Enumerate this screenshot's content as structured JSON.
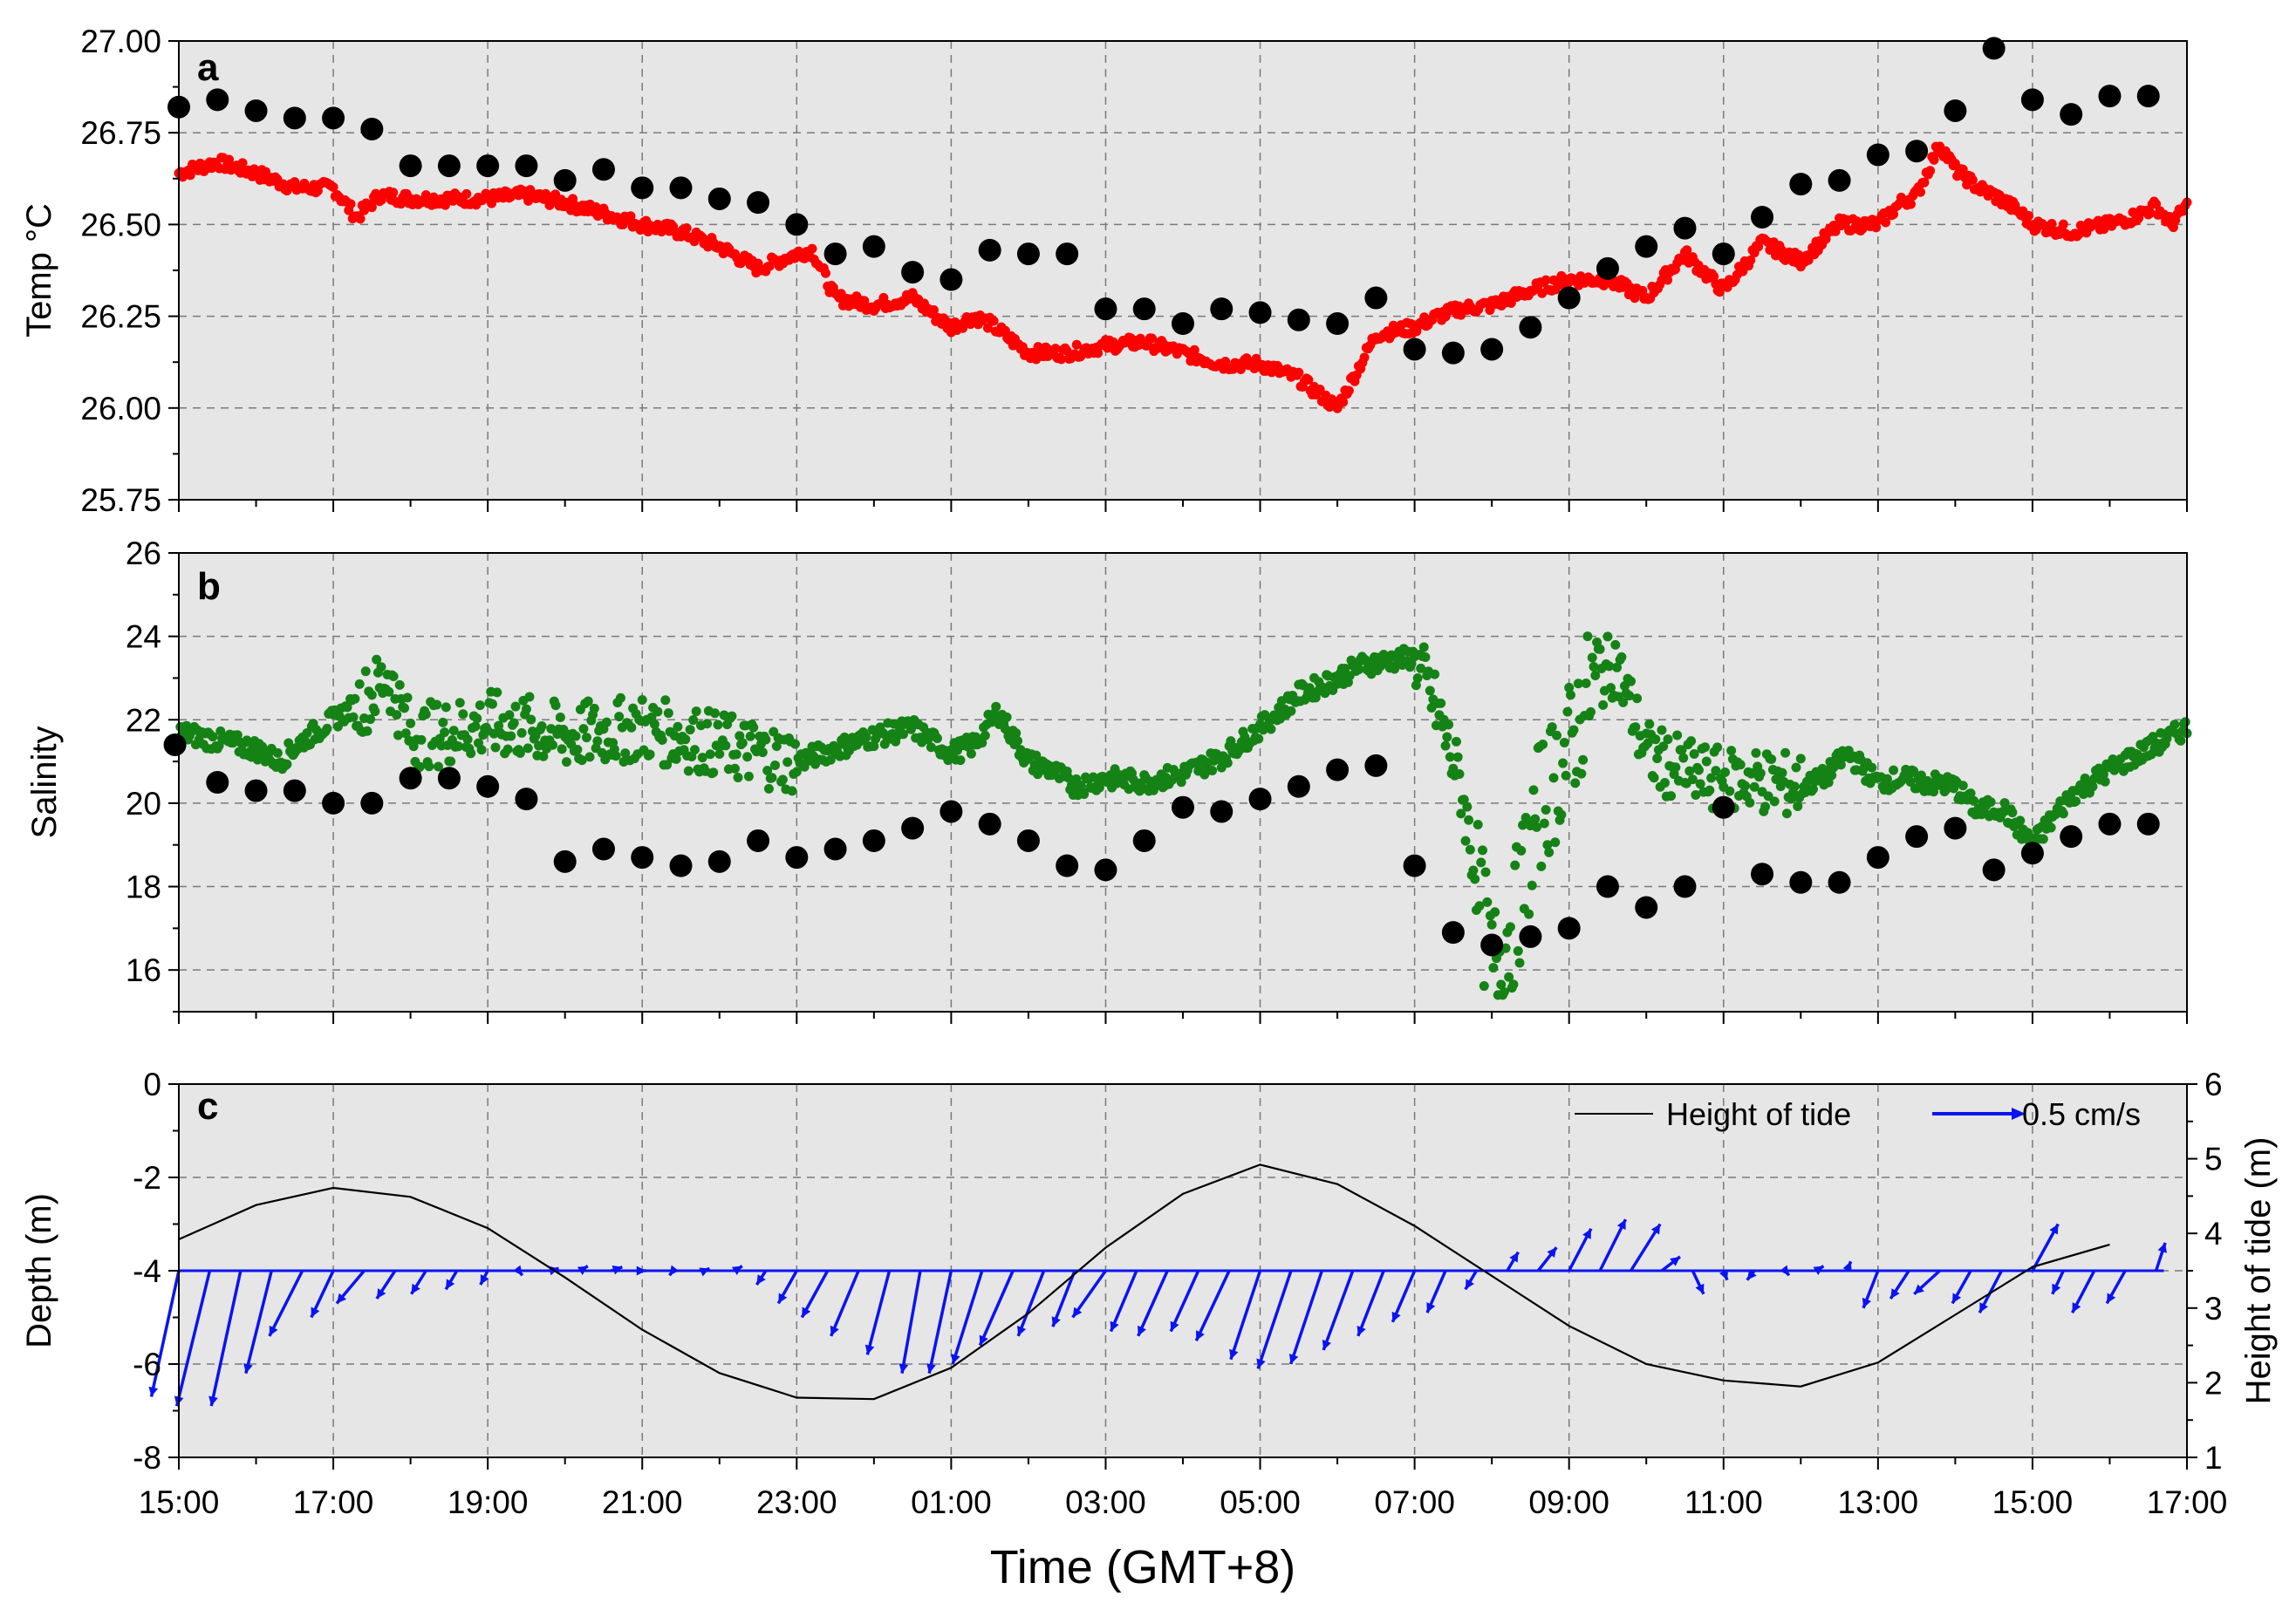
{
  "xaxis": {
    "title": "Time (GMT+8)",
    "tick_labels": [
      "15:00",
      "17:00",
      "19:00",
      "21:00",
      "23:00",
      "01:00",
      "03:00",
      "05:00",
      "07:00",
      "09:00",
      "11:00",
      "13:00",
      "15:00",
      "17:00"
    ],
    "range_hours": [
      0,
      26
    ]
  },
  "colors": {
    "panel_bg": "#e6e6e6",
    "temp_series": "#ff0000",
    "salinity_series": "#158215",
    "observed_points": "#000000",
    "current_vectors": "#0a14f0",
    "tide_line": "#000000"
  },
  "chart_data": [
    {
      "panel": "a",
      "type": "scatter",
      "ylabel": "Temp °C",
      "ylim": [
        25.75,
        27.0
      ],
      "y_tick_labels": [
        "25.75",
        "26.00",
        "26.25",
        "26.50",
        "26.75",
        "27.00"
      ],
      "grid": true,
      "series": [
        {
          "style": "dense-red-dots",
          "x_hours": [
            0,
            0.5,
            1,
            1.5,
            2,
            2.3,
            2.6,
            3,
            3.5,
            4,
            4.5,
            5,
            5.5,
            6,
            6.5,
            7,
            7.5,
            8,
            8.2,
            8.5,
            9,
            9.5,
            9.8,
            10,
            10.3,
            10.5,
            11,
            11.5,
            12,
            12.5,
            13,
            13.5,
            14,
            14.5,
            15,
            15.5,
            16,
            16.3,
            16.6,
            17,
            17.5,
            18,
            18.5,
            19,
            19.5,
            20,
            20.5,
            21,
            21.5,
            22,
            22.3,
            22.5,
            22.8,
            23,
            23.3,
            23.5,
            23.8,
            24,
            24.5,
            25,
            25.3,
            25.6,
            25.8,
            26
          ],
          "y": [
            26.64,
            26.67,
            26.64,
            26.6,
            26.6,
            26.52,
            26.58,
            26.57,
            26.57,
            26.57,
            26.58,
            26.56,
            26.53,
            26.5,
            26.48,
            26.44,
            26.38,
            26.42,
            26.43,
            26.3,
            26.28,
            26.3,
            26.25,
            26.22,
            26.25,
            26.23,
            26.15,
            26.15,
            26.17,
            26.18,
            26.15,
            26.12,
            26.12,
            26.08,
            26.0,
            26.2,
            26.22,
            26.25,
            26.27,
            26.28,
            26.32,
            26.35,
            26.35,
            26.3,
            26.42,
            26.32,
            26.45,
            26.4,
            26.5,
            26.5,
            26.56,
            26.58,
            26.72,
            26.65,
            26.6,
            26.58,
            26.54,
            26.5,
            26.48,
            26.5,
            26.52,
            26.55,
            26.5,
            26.55
          ]
        },
        {
          "style": "large-black-dots",
          "x_hours": [
            0,
            0.5,
            1,
            1.5,
            2,
            2.5,
            3,
            3.5,
            4,
            4.5,
            5,
            5.5,
            6,
            6.5,
            7,
            7.5,
            8,
            8.5,
            9,
            9.5,
            10,
            10.5,
            11,
            11.5,
            12,
            12.5,
            13,
            13.5,
            14,
            14.5,
            15,
            15.5,
            16,
            16.5,
            17,
            17.5,
            18,
            18.5,
            19,
            19.5,
            20,
            20.5,
            21,
            21.5,
            22,
            22.5,
            23,
            23.5,
            24,
            24.5,
            25,
            25.5
          ],
          "y": [
            26.82,
            26.84,
            26.81,
            26.79,
            26.79,
            26.76,
            26.66,
            26.66,
            26.66,
            26.66,
            26.62,
            26.65,
            26.6,
            26.6,
            26.57,
            26.56,
            26.5,
            26.42,
            26.44,
            26.37,
            26.35,
            26.43,
            26.42,
            26.42,
            26.27,
            26.27,
            26.23,
            26.27,
            26.26,
            26.24,
            26.23,
            26.3,
            26.16,
            26.15,
            26.16,
            26.22,
            26.3,
            26.38,
            26.44,
            26.49,
            26.42,
            26.52,
            26.61,
            26.62,
            26.69,
            26.7,
            26.81,
            26.98,
            26.84,
            26.8,
            26.85,
            26.85
          ]
        }
      ]
    },
    {
      "panel": "b",
      "type": "scatter",
      "ylabel": "Salinity",
      "ylim": [
        15,
        26
      ],
      "y_tick_labels": [
        "16",
        "18",
        "20",
        "22",
        "24",
        "26"
      ],
      "grid": true,
      "series": [
        {
          "style": "dense-green-dots",
          "x_hours": [
            0,
            0.5,
            1,
            1.3,
            1.6,
            2,
            2.5,
            2.7,
            3,
            3.5,
            4,
            4.5,
            5,
            5.5,
            6,
            6.5,
            7,
            7.5,
            8,
            8.5,
            9,
            9.5,
            10,
            10.3,
            10.6,
            11,
            11.3,
            11.6,
            12,
            12.5,
            13,
            13.5,
            14,
            14.5,
            15,
            15.3,
            15.6,
            16,
            16.3,
            16.6,
            17,
            17.3,
            17.6,
            18,
            18.3,
            18.6,
            19,
            19.3,
            19.6,
            20,
            20.3,
            20.6,
            21,
            21.3,
            21.6,
            22,
            22.3,
            22.6,
            23,
            23.3,
            23.6,
            24,
            24.5,
            25,
            25.5,
            26
          ],
          "y": [
            21.7,
            21.5,
            21.3,
            21.0,
            21.5,
            22.0,
            22.6,
            23.1,
            21.6,
            21.7,
            21.9,
            21.8,
            21.6,
            21.7,
            21.8,
            21.6,
            21.4,
            21.2,
            21.0,
            21.3,
            21.6,
            21.8,
            21.2,
            21.4,
            22.2,
            21.0,
            20.8,
            20.4,
            20.6,
            20.5,
            20.7,
            21.1,
            21.8,
            22.6,
            23.0,
            23.3,
            23.4,
            23.5,
            22.2,
            20.4,
            16.0,
            17.2,
            19.8,
            21.3,
            22.8,
            23.4,
            21.2,
            20.9,
            20.7,
            20.5,
            20.6,
            20.5,
            20.4,
            20.6,
            21.2,
            20.5,
            20.6,
            20.5,
            20.4,
            19.8,
            19.9,
            19.0,
            20.2,
            20.8,
            21.3,
            21.8
          ]
        },
        {
          "style": "large-black-dots",
          "x_hours": [
            -0.05,
            0.5,
            1,
            1.5,
            2,
            2.5,
            3,
            3.5,
            4,
            4.5,
            5,
            5.5,
            6,
            6.5,
            7,
            7.5,
            8,
            8.5,
            9,
            9.5,
            10,
            10.5,
            11,
            11.5,
            12,
            12.5,
            13,
            13.5,
            14,
            14.5,
            15,
            15.5,
            16,
            16.5,
            17,
            17.5,
            18,
            18.5,
            19,
            19.5,
            20,
            20.5,
            21,
            21.5,
            22,
            22.5,
            23,
            23.5,
            24,
            24.5,
            25,
            25.5
          ],
          "y": [
            21.4,
            20.5,
            20.3,
            20.3,
            20.0,
            20.0,
            20.6,
            20.6,
            20.4,
            20.1,
            18.6,
            18.9,
            18.7,
            18.5,
            18.6,
            19.1,
            18.7,
            18.9,
            19.1,
            19.4,
            19.8,
            19.5,
            19.1,
            18.5,
            18.4,
            19.1,
            19.9,
            19.8,
            20.1,
            20.4,
            20.8,
            20.9,
            18.5,
            16.9,
            16.6,
            16.8,
            17.0,
            18.0,
            17.5,
            18.0,
            19.9,
            18.3,
            18.1,
            18.1,
            18.7,
            19.2,
            19.4,
            18.4,
            18.8,
            19.2,
            19.5,
            19.5
          ]
        }
      ]
    },
    {
      "panel": "c",
      "type": "line",
      "ylabel": "Depth (m)",
      "ylim": [
        -8,
        0
      ],
      "y_tick_labels": [
        "-8",
        "-6",
        "-4",
        "-2",
        "0"
      ],
      "y2label": "Height of tide (m)",
      "y2lim": [
        1,
        6
      ],
      "y2_tick_labels": [
        "1",
        "2",
        "3",
        "4",
        "5",
        "6"
      ],
      "grid": true,
      "legend": {
        "position": "top-right",
        "tide_label": "Height of tide",
        "vector_label": "0.5 cm/s"
      },
      "series": [
        {
          "name": "Height of tide",
          "axis": "right",
          "x_hours": [
            0,
            1,
            2,
            3,
            4,
            5,
            6,
            7,
            8,
            9,
            10,
            11,
            12,
            13,
            14,
            15,
            16,
            17,
            18,
            19,
            20,
            21,
            22,
            23,
            24,
            25
          ],
          "y": [
            3.92,
            4.38,
            4.61,
            4.49,
            4.07,
            3.41,
            2.71,
            2.13,
            1.8,
            1.78,
            2.2,
            2.93,
            3.81,
            4.53,
            4.92,
            4.66,
            4.1,
            3.43,
            2.76,
            2.25,
            2.03,
            1.95,
            2.27,
            2.91,
            3.55,
            3.85
          ]
        },
        {
          "name": "0.5 cm/s",
          "style": "current-vectors",
          "base_depth": -4.0,
          "x_hours": [
            0,
            0.4,
            0.8,
            1.2,
            1.6,
            2,
            2.4,
            2.8,
            3.2,
            3.6,
            4,
            4.4,
            4.8,
            5.2,
            5.6,
            6,
            6.4,
            6.8,
            7.2,
            7.6,
            8,
            8.4,
            8.8,
            9.2,
            9.6,
            10,
            10.4,
            10.8,
            11.2,
            11.6,
            12,
            12.4,
            12.8,
            13.2,
            13.6,
            14,
            14.4,
            14.8,
            15.2,
            15.6,
            16,
            16.4,
            16.8,
            17.2,
            17.6,
            18,
            18.4,
            18.8,
            19.2,
            19.6,
            20,
            20.4,
            20.8,
            21.2,
            21.6,
            22,
            22.4,
            22.8,
            23.2,
            23.6,
            24,
            24.4,
            24.8,
            25.2,
            25.6
          ],
          "u": [
            -0.15,
            -0.18,
            -0.16,
            -0.14,
            -0.18,
            -0.12,
            -0.15,
            -0.1,
            -0.08,
            -0.06,
            -0.04,
            0.02,
            0.05,
            0.04,
            0.06,
            0.02,
            -0.02,
            0.03,
            0.04,
            -0.05,
            -0.1,
            -0.14,
            -0.15,
            -0.12,
            -0.1,
            -0.12,
            -0.16,
            -0.18,
            -0.14,
            -0.12,
            -0.18,
            -0.14,
            -0.16,
            -0.15,
            -0.18,
            -0.16,
            -0.18,
            -0.17,
            -0.16,
            -0.14,
            -0.12,
            -0.1,
            -0.06,
            0.06,
            0.1,
            0.12,
            0.14,
            0.16,
            0.1,
            0.06,
            0.02,
            -0.04,
            0.02,
            0.04,
            0.02,
            -0.08,
            -0.1,
            -0.14,
            -0.1,
            -0.12,
            0.14,
            -0.06,
            -0.12,
            -0.1,
            0.05
          ],
          "v": [
            -2.7,
            -2.9,
            -2.9,
            -2.2,
            -1.4,
            -1.0,
            -0.7,
            -0.6,
            -0.5,
            -0.4,
            -0.3,
            -0.1,
            0.05,
            0.1,
            0.08,
            0.0,
            -0.1,
            0.05,
            0.1,
            -0.3,
            -0.7,
            -1.0,
            -1.4,
            -1.8,
            -2.2,
            -2.2,
            -2.0,
            -1.6,
            -1.4,
            -1.2,
            -1.0,
            -1.3,
            -1.4,
            -1.3,
            -1.5,
            -1.9,
            -2.1,
            -2.0,
            -1.7,
            -1.4,
            -1.1,
            -0.9,
            -0.4,
            0.4,
            0.5,
            0.9,
            1.1,
            1.0,
            0.3,
            -0.5,
            -0.2,
            -0.2,
            -0.1,
            0.1,
            0.2,
            -0.8,
            -0.6,
            -0.5,
            -0.7,
            -0.9,
            1.0,
            -0.5,
            -0.9,
            -0.7,
            0.6
          ]
        }
      ]
    }
  ]
}
